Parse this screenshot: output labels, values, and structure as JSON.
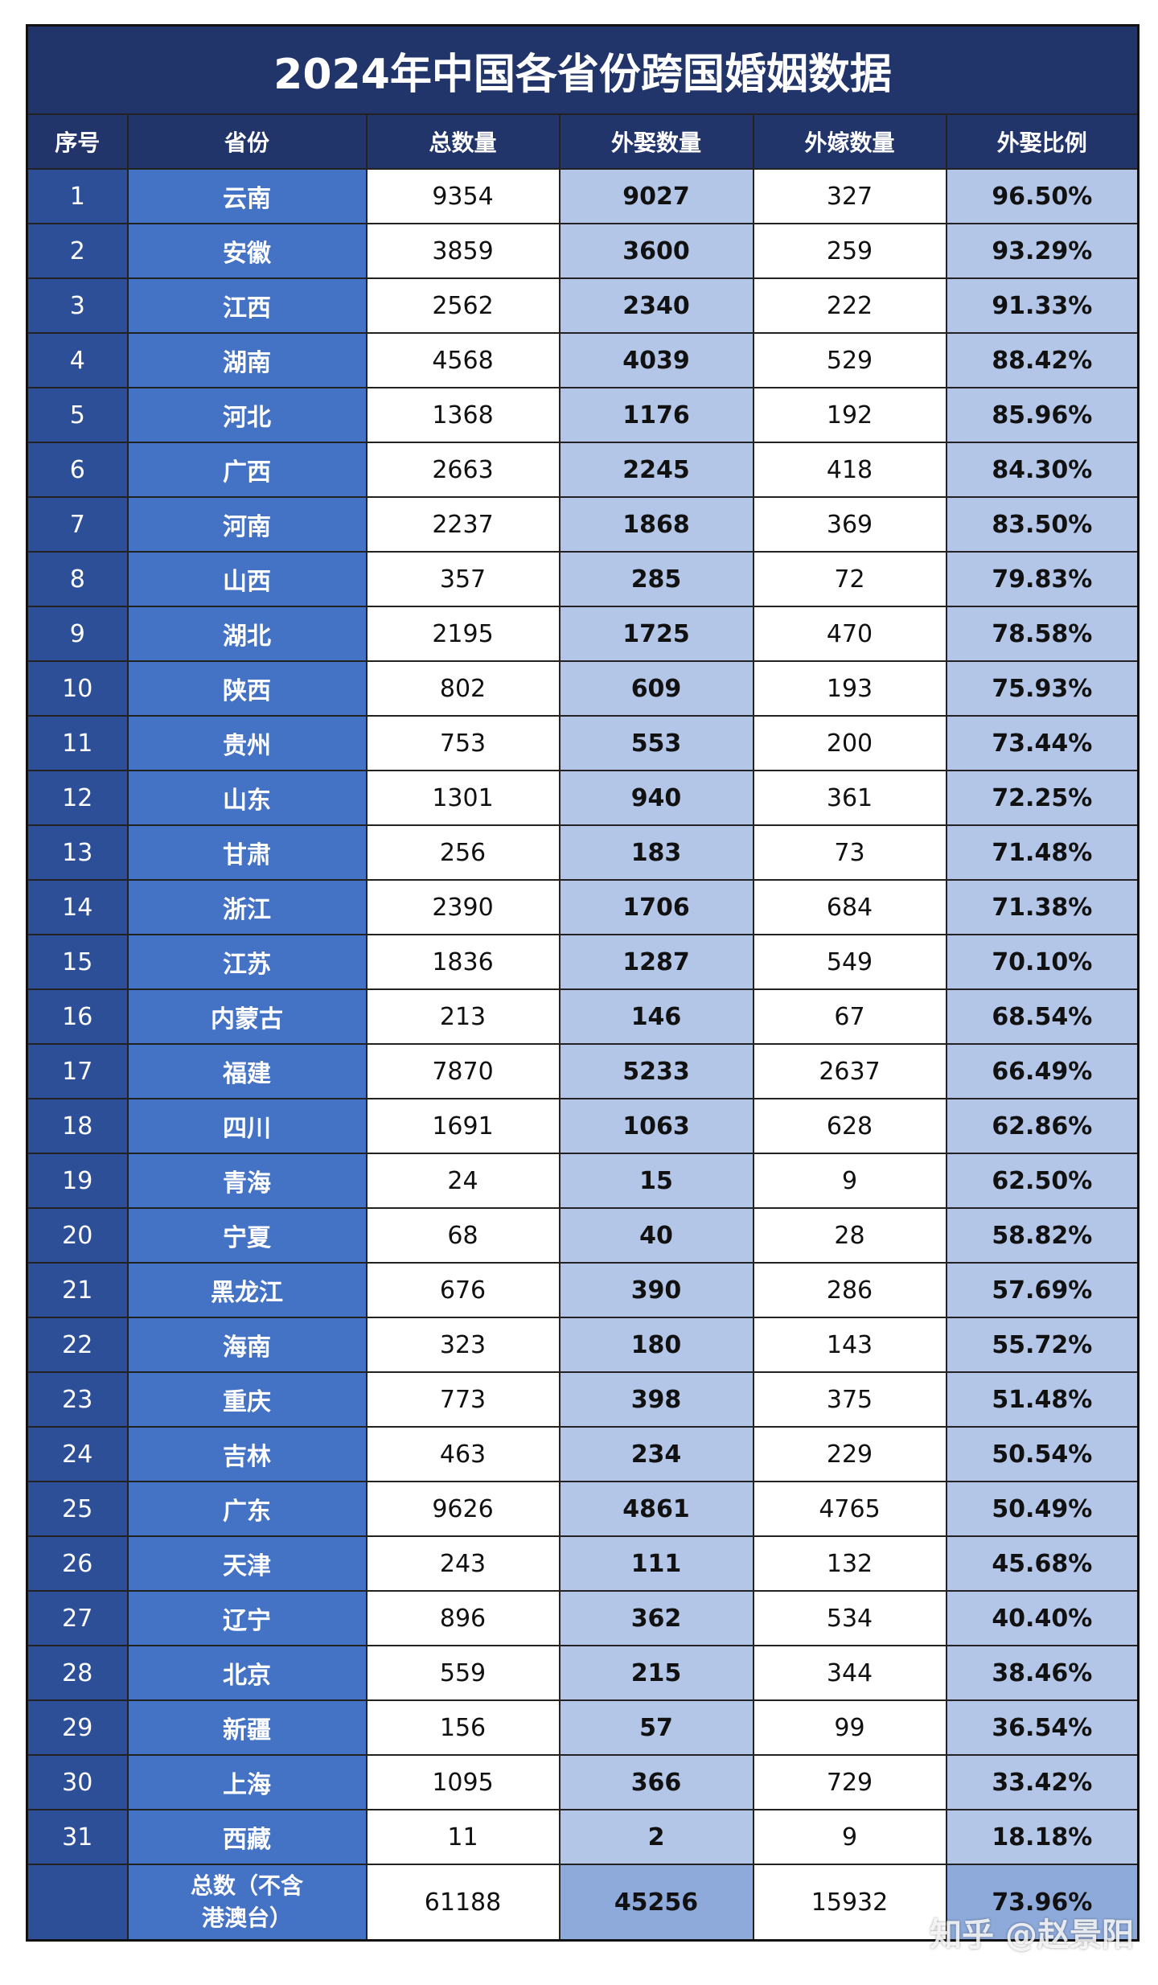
{
  "title": "2024年中国各省份跨国婚姻数据",
  "headers": [
    "序号",
    "省份",
    "总数量",
    "外娶数量",
    "外嫁数量",
    "外娶比例"
  ],
  "rows": [
    [
      "1",
      "云南",
      "9354",
      "9027",
      "327",
      "96.50%"
    ],
    [
      "2",
      "安徽",
      "3859",
      "3600",
      "259",
      "93.29%"
    ],
    [
      "3",
      "江西",
      "2562",
      "2340",
      "222",
      "91.33%"
    ],
    [
      "4",
      "湖南",
      "4568",
      "4039",
      "529",
      "88.42%"
    ],
    [
      "5",
      "河北",
      "1368",
      "1176",
      "192",
      "85.96%"
    ],
    [
      "6",
      "广西",
      "2663",
      "2245",
      "418",
      "84.30%"
    ],
    [
      "7",
      "河南",
      "2237",
      "1868",
      "369",
      "83.50%"
    ],
    [
      "8",
      "山西",
      "357",
      "285",
      "72",
      "79.83%"
    ],
    [
      "9",
      "湖北",
      "2195",
      "1725",
      "470",
      "78.58%"
    ],
    [
      "10",
      "陕西",
      "802",
      "609",
      "193",
      "75.93%"
    ],
    [
      "11",
      "贵州",
      "753",
      "553",
      "200",
      "73.44%"
    ],
    [
      "12",
      "山东",
      "1301",
      "940",
      "361",
      "72.25%"
    ],
    [
      "13",
      "甘肃",
      "256",
      "183",
      "73",
      "71.48%"
    ],
    [
      "14",
      "浙江",
      "2390",
      "1706",
      "684",
      "71.38%"
    ],
    [
      "15",
      "江苏",
      "1836",
      "1287",
      "549",
      "70.10%"
    ],
    [
      "16",
      "内蒙古",
      "213",
      "146",
      "67",
      "68.54%"
    ],
    [
      "17",
      "福建",
      "7870",
      "5233",
      "2637",
      "66.49%"
    ],
    [
      "18",
      "四川",
      "1691",
      "1063",
      "628",
      "62.86%"
    ],
    [
      "19",
      "青海",
      "24",
      "15",
      "9",
      "62.50%"
    ],
    [
      "20",
      "宁夏",
      "68",
      "40",
      "28",
      "58.82%"
    ],
    [
      "21",
      "黑龙江",
      "676",
      "390",
      "286",
      "57.69%"
    ],
    [
      "22",
      "海南",
      "323",
      "180",
      "143",
      "55.72%"
    ],
    [
      "23",
      "重庆",
      "773",
      "398",
      "375",
      "51.48%"
    ],
    [
      "24",
      "吉林",
      "463",
      "234",
      "229",
      "50.54%"
    ],
    [
      "25",
      "广东",
      "9626",
      "4861",
      "4765",
      "50.49%"
    ],
    [
      "26",
      "天津",
      "243",
      "111",
      "132",
      "45.68%"
    ],
    [
      "27",
      "辽宁",
      "896",
      "362",
      "534",
      "40.40%"
    ],
    [
      "28",
      "北京",
      "559",
      "215",
      "344",
      "38.46%"
    ],
    [
      "29",
      "新疆",
      "156",
      "57",
      "99",
      "36.54%"
    ],
    [
      "30",
      "上海",
      "1095",
      "366",
      "729",
      "33.42%"
    ],
    [
      "31",
      "西藏",
      "11",
      "2",
      "9",
      "18.18%"
    ]
  ],
  "total": {
    "label_line1": "总数（不含",
    "label_line2": "港澳台）",
    "total": "61188",
    "male": "45256",
    "female": "15932",
    "ratio": "73.96%"
  },
  "watermark": "知乎 @赵景阳",
  "colors": {
    "title_bg": "#22356b",
    "index_bg": "#2c4f98",
    "province_bg": "#4472c4",
    "highlight_bg": "#b4c6e7",
    "total_highlight_bg": "#8eaadb"
  }
}
